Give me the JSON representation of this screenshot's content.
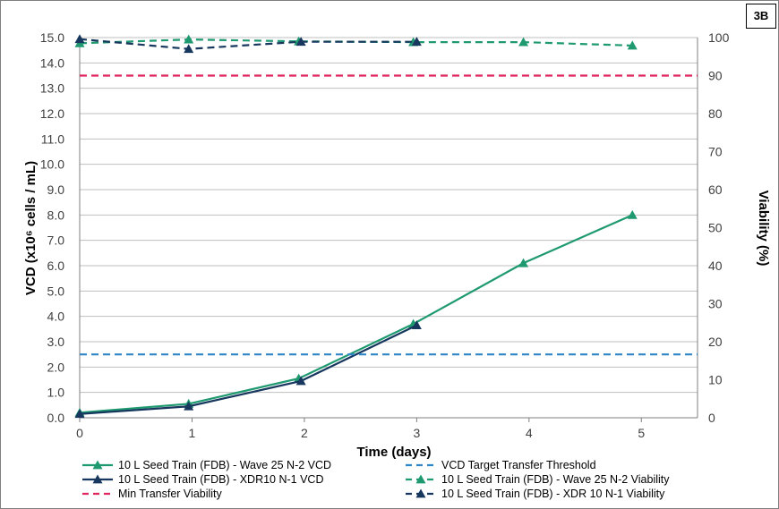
{
  "badge": "3B",
  "chart_data": {
    "type": "line",
    "xlabel": "Time (days)",
    "ylabel_left": "VCD (x10⁶ cells / mL)",
    "ylabel_right": "Viability (%)",
    "xlim": [
      0,
      5.5
    ],
    "ylim_left": [
      0,
      15
    ],
    "ylim_right": [
      0,
      100
    ],
    "x_ticks": [
      "0",
      "1",
      "2",
      "3",
      "4",
      "5"
    ],
    "y_left_ticks": [
      "0.0",
      "1.0",
      "2.0",
      "3.0",
      "4.0",
      "5.0",
      "6.0",
      "7.0",
      "8.0",
      "9.0",
      "10.0",
      "11.0",
      "12.0",
      "13.0",
      "14.0",
      "15.0"
    ],
    "y_right_ticks": [
      "0",
      "10",
      "20",
      "30",
      "40",
      "50",
      "60",
      "70",
      "80",
      "90",
      "100"
    ],
    "grid": "horizontal",
    "legend_position": "bottom",
    "series": [
      {
        "name": "10 L Seed Train (FDB) - Wave 25 N-2 VCD",
        "axis": "left",
        "style": "solid",
        "color": "#1e9970",
        "x": [
          0,
          0.97,
          1.95,
          2.97,
          3.95,
          4.92
        ],
        "y": [
          0.2,
          0.55,
          1.55,
          3.7,
          6.1,
          8.0
        ]
      },
      {
        "name": "10 L Seed Train (FDB) - XDR10 N-1 VCD",
        "axis": "left",
        "style": "solid",
        "color": "#17375e",
        "x": [
          0,
          0.97,
          1.97,
          3.0
        ],
        "y": [
          0.15,
          0.45,
          1.45,
          3.65
        ]
      },
      {
        "name": "Min Transfer Viability",
        "axis": "right",
        "style": "dashed",
        "color": "#e0245e",
        "x": [
          0,
          5.5
        ],
        "y": [
          90,
          90
        ]
      },
      {
        "name": "VCD Target Transfer Threshold",
        "axis": "left",
        "style": "dashed",
        "color": "#2e86c8",
        "x": [
          0,
          5.5
        ],
        "y": [
          2.5,
          2.5
        ]
      },
      {
        "name": "10 L Seed Train (FDB) - Wave 25 N-2 Viability",
        "axis": "right",
        "style": "dashed",
        "color": "#1e9970",
        "x": [
          0,
          0.97,
          1.95,
          2.97,
          3.95,
          4.92
        ],
        "y": [
          98.5,
          99.5,
          99.0,
          98.8,
          98.8,
          97.9
        ]
      },
      {
        "name": "10 L Seed Train (FDB) - XDR 10 N-1 Viability",
        "axis": "right",
        "style": "dashed",
        "color": "#17375e",
        "x": [
          0,
          0.97,
          1.97,
          3.0
        ],
        "y": [
          99.6,
          97.0,
          98.9,
          98.9
        ]
      }
    ],
    "legend_order": [
      0,
      3,
      1,
      4,
      2,
      5
    ]
  }
}
